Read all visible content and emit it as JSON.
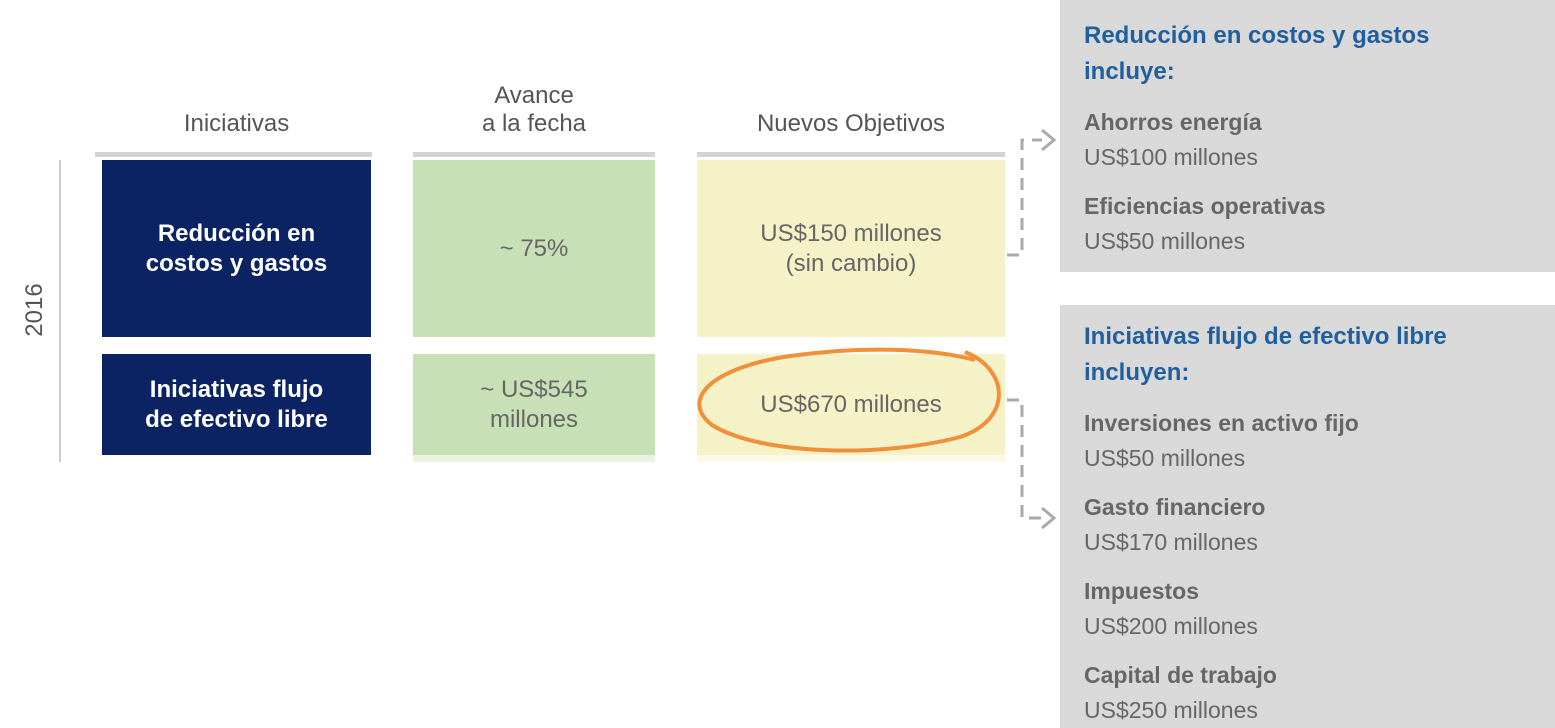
{
  "headers": [
    [
      "Iniciativas"
    ],
    [
      "Avance",
      "a la fecha"
    ],
    [
      "Nuevos Objetivos"
    ]
  ],
  "year_label": "2016",
  "rows": [
    {
      "initiative": [
        "Reducción en",
        "costos y gastos"
      ],
      "progress": [
        "~ 75%"
      ],
      "target": [
        "US$150 millones",
        "(sin cambio)"
      ]
    },
    {
      "initiative": [
        "Iniciativas flujo",
        "de efectivo libre"
      ],
      "progress": [
        "~ US$545",
        "millones"
      ],
      "target": [
        "US$670 millones"
      ]
    }
  ],
  "panels": [
    {
      "title": [
        "Reducción en costos y gastos",
        "incluye:"
      ],
      "items": [
        {
          "name": "Ahorros energía",
          "amount": "US$100 millones"
        },
        {
          "name": "Eficiencias operativas",
          "amount": "US$50 millones"
        }
      ]
    },
    {
      "title": [
        "Iniciativas flujo de efectivo libre",
        "incluyen:"
      ],
      "items": [
        {
          "name": "Inversiones en activo fijo",
          "amount": "US$50 millones"
        },
        {
          "name": "Gasto financiero",
          "amount": "US$170 millones"
        },
        {
          "name": "Impuestos",
          "amount": "US$200 millones"
        },
        {
          "name": "Capital de trabajo",
          "amount": "US$250 millones"
        }
      ]
    }
  ]
}
